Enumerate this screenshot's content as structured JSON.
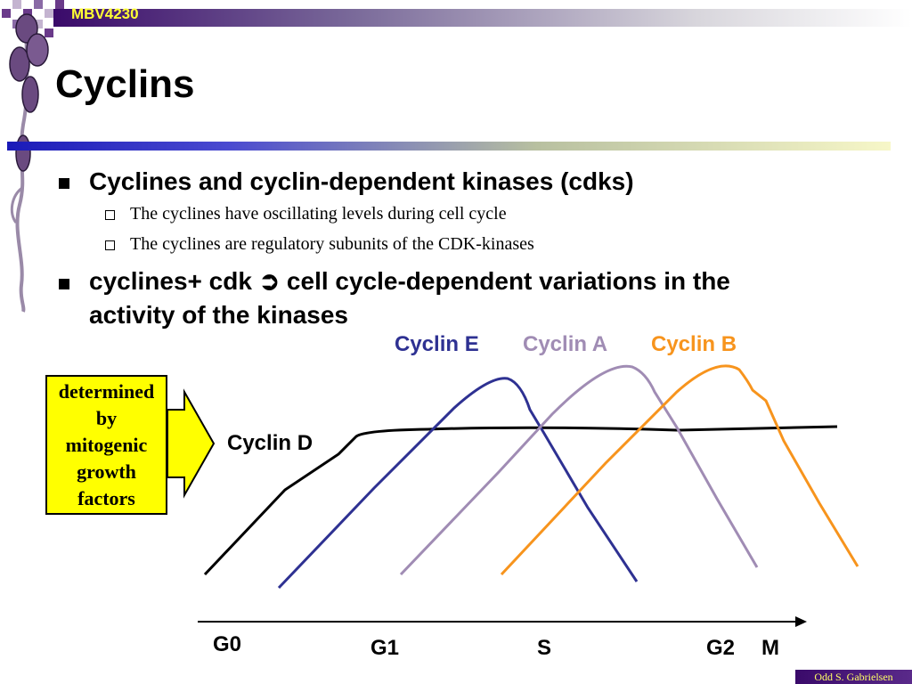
{
  "header": {
    "course_code": "MBV4230"
  },
  "slide": {
    "title": "Cyclins",
    "bullets": [
      {
        "text": "Cyclines and cyclin-dependent kinases (cdks)",
        "sub": [
          "The cyclines have oscillating levels during cell cycle",
          "The cyclines are regulatory subunits of the CDK-kinases"
        ]
      },
      {
        "text_before": "cyclines+ cdk ",
        "arrow_symbol": "➲",
        "text_after": " cell cycle-dependent variations in the",
        "text_line2": "activity of the kinases"
      }
    ]
  },
  "note_box": {
    "text": "determined\nby\nmitogenic\ngrowth\nfactors",
    "color": "#ffff00"
  },
  "chart_data": {
    "type": "line",
    "title": "",
    "legend": [
      "Cyclin E",
      "Cyclin A",
      "Cyclin B"
    ],
    "series": [
      {
        "name": "Cyclin D",
        "color": "#000000"
      },
      {
        "name": "Cyclin E",
        "color": "#2e3192"
      },
      {
        "name": "Cyclin A",
        "color": "#a08cb4"
      },
      {
        "name": "Cyclin B",
        "color": "#f7941d"
      }
    ],
    "x_phases": [
      "G0",
      "G1",
      "S",
      "G2",
      "M"
    ]
  },
  "footer": {
    "author": "Odd S. Gabrielsen"
  }
}
